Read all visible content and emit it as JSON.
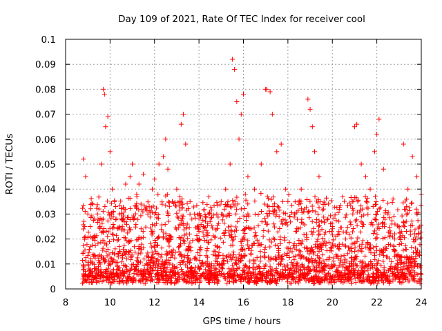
{
  "chart_data": {
    "type": "scatter",
    "title": "Day 109 of 2021, Rate Of TEC Index for receiver cool",
    "xlabel": "GPS time / hours",
    "ylabel": "ROTI / TECUs",
    "xlim": [
      8,
      24
    ],
    "ylim": [
      0,
      0.1
    ],
    "x_ticks": [
      "8",
      "10",
      "12",
      "14",
      "16",
      "18",
      "20",
      "22",
      "24"
    ],
    "y_ticks": [
      "0",
      "0.01",
      "0.02",
      "0.03",
      "0.04",
      "0.05",
      "0.06",
      "0.07",
      "0.08",
      "0.09",
      "0.1"
    ],
    "grid": true,
    "marker": "+",
    "color": "#ff0000",
    "series": [
      {
        "name": "ROTI",
        "x": [
          8.8,
          8.9,
          9.0,
          9.1,
          9.2,
          9.3,
          9.5,
          9.6,
          9.7,
          9.75,
          9.8,
          9.9,
          10.0,
          10.1,
          10.2,
          10.3,
          10.5,
          10.7,
          10.9,
          11.0,
          11.2,
          11.3,
          11.5,
          11.7,
          11.9,
          12.0,
          12.2,
          12.4,
          12.5,
          12.6,
          12.8,
          13.0,
          13.2,
          13.3,
          13.4,
          13.6,
          13.8,
          14.0,
          14.2,
          14.5,
          14.8,
          15.0,
          15.2,
          15.4,
          15.5,
          15.6,
          15.7,
          15.8,
          15.9,
          16.0,
          16.2,
          16.5,
          16.8,
          17.0,
          17.05,
          17.2,
          17.3,
          17.5,
          17.7,
          17.9,
          18.0,
          18.3,
          18.6,
          18.9,
          19.0,
          19.1,
          19.2,
          19.4,
          19.6,
          19.8,
          20.0,
          20.3,
          20.6,
          20.9,
          21.0,
          21.1,
          21.3,
          21.5,
          21.7,
          21.9,
          22.0,
          22.1,
          22.3,
          22.5,
          22.8,
          23.0,
          23.2,
          23.4,
          23.6,
          23.8,
          24.0
        ],
        "y": [
          0.052,
          0.045,
          0.03,
          0.025,
          0.02,
          0.028,
          0.032,
          0.05,
          0.08,
          0.078,
          0.065,
          0.069,
          0.055,
          0.04,
          0.035,
          0.028,
          0.03,
          0.042,
          0.045,
          0.05,
          0.038,
          0.042,
          0.046,
          0.03,
          0.04,
          0.044,
          0.05,
          0.053,
          0.06,
          0.048,
          0.035,
          0.04,
          0.066,
          0.07,
          0.058,
          0.035,
          0.03,
          0.028,
          0.025,
          0.027,
          0.03,
          0.035,
          0.04,
          0.05,
          0.092,
          0.088,
          0.075,
          0.06,
          0.07,
          0.078,
          0.045,
          0.04,
          0.05,
          0.08,
          0.08,
          0.079,
          0.07,
          0.055,
          0.058,
          0.04,
          0.035,
          0.03,
          0.04,
          0.076,
          0.072,
          0.065,
          0.055,
          0.045,
          0.032,
          0.028,
          0.025,
          0.022,
          0.02,
          0.035,
          0.065,
          0.066,
          0.05,
          0.045,
          0.04,
          0.055,
          0.062,
          0.068,
          0.048,
          0.03,
          0.02,
          0.025,
          0.058,
          0.04,
          0.053,
          0.045,
          0.038
        ]
      }
    ]
  }
}
